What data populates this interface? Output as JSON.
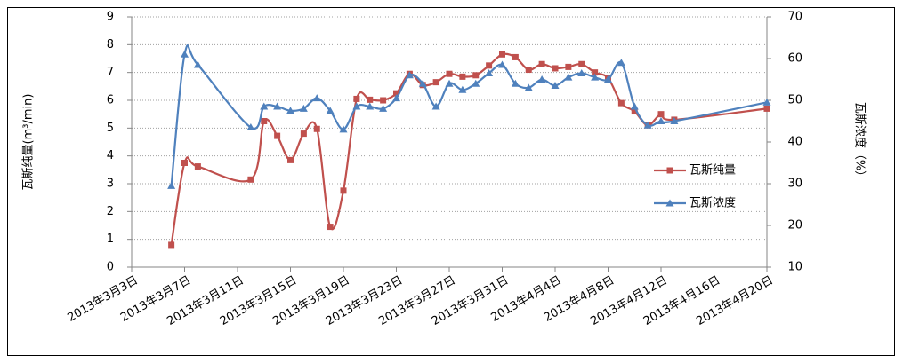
{
  "chart_data": {
    "type": "line",
    "x": [
      "2013-03-06",
      "2013-03-07",
      "2013-03-08",
      "2013-03-12",
      "2013-03-13",
      "2013-03-14",
      "2013-03-15",
      "2013-03-16",
      "2013-03-17",
      "2013-03-18",
      "2013-03-19",
      "2013-03-20",
      "2013-03-21",
      "2013-03-22",
      "2013-03-23",
      "2013-03-24",
      "2013-03-25",
      "2013-03-26",
      "2013-03-27",
      "2013-03-28",
      "2013-03-29",
      "2013-03-30",
      "2013-03-31",
      "2013-04-01",
      "2013-04-02",
      "2013-04-03",
      "2013-04-04",
      "2013-04-05",
      "2013-04-06",
      "2013-04-07",
      "2013-04-08",
      "2013-04-09",
      "2013-04-10",
      "2013-04-11",
      "2013-04-12",
      "2013-04-13",
      "2013-04-20"
    ],
    "series": [
      {
        "name": "瓦斯纯量",
        "color": "#c0504d",
        "marker": "square",
        "values": [
          0.8,
          3.75,
          3.62,
          3.15,
          5.25,
          4.72,
          3.85,
          4.8,
          4.97,
          1.45,
          2.75,
          6.05,
          6.02,
          6.0,
          6.25,
          6.95,
          6.55,
          6.65,
          6.95,
          6.85,
          6.9,
          7.25,
          7.65,
          7.55,
          7.1,
          7.3,
          7.15,
          7.2,
          7.3,
          7.0,
          6.8,
          5.9,
          5.6,
          5.1,
          5.5,
          5.3,
          5.7
        ]
      },
      {
        "name": "瓦斯浓度",
        "color": "#4f81bd",
        "marker": "triangle",
        "axis": "y2",
        "values": [
          29.5,
          61,
          58.5,
          43.5,
          48.5,
          48.5,
          47.5,
          48,
          50.5,
          47.5,
          43,
          48.5,
          48.5,
          48,
          50.5,
          56,
          54,
          48.5,
          54,
          52.5,
          54,
          56.5,
          58.5,
          54,
          53,
          55,
          53.5,
          55.5,
          56.5,
          55.5,
          55,
          59,
          48.5,
          44,
          45,
          45,
          49.5
        ]
      }
    ],
    "y_label": "瓦斯纯量(m³/min)",
    "y2_label": "瓦斯浓度（%）",
    "xlim": [
      "2013-03-03",
      "2013-04-20"
    ],
    "xticks": [
      {
        "value": "2013-03-03",
        "label": "2013年3月3日"
      },
      {
        "value": "2013-03-07",
        "label": "2013年3月7日"
      },
      {
        "value": "2013-03-11",
        "label": "2013年3月11日"
      },
      {
        "value": "2013-03-15",
        "label": "2013年3月15日"
      },
      {
        "value": "2013-03-19",
        "label": "2013年3月19日"
      },
      {
        "value": "2013-03-23",
        "label": "2013年3月23日"
      },
      {
        "value": "2013-03-27",
        "label": "2013年3月27日"
      },
      {
        "value": "2013-03-31",
        "label": "2013年3月31日"
      },
      {
        "value": "2013-04-04",
        "label": "2013年4月4日"
      },
      {
        "value": "2013-04-08",
        "label": "2013年4月8日"
      },
      {
        "value": "2013-04-12",
        "label": "2013年4月12日"
      },
      {
        "value": "2013-04-16",
        "label": "2013年4月16日"
      },
      {
        "value": "2013-04-20",
        "label": "2013年4月20日"
      }
    ],
    "ylim": [
      0,
      9
    ],
    "yticks": [
      0,
      1,
      2,
      3,
      4,
      5,
      6,
      7,
      8,
      9
    ],
    "y2lim": [
      10,
      70
    ],
    "y2ticks": [
      10,
      20,
      30,
      40,
      50,
      60,
      70
    ],
    "grid": true,
    "legend": "right"
  }
}
